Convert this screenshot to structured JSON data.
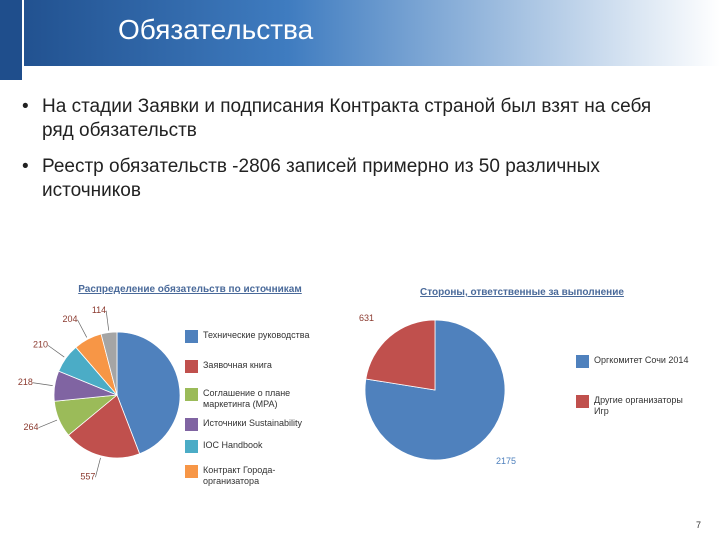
{
  "header": {
    "title": "Обязательства"
  },
  "bullets": [
    "На стадии Заявки и подписания Контракта страной был взят на себя ряд обязательств",
    "Реестр обязательств -2806 записей примерно из 50 различных источников"
  ],
  "page_number": "7",
  "chart_data": [
    {
      "type": "pie",
      "title": "Распределение обязательств по источникам",
      "categories": [
        "Технические руководства",
        "Заявочная книга",
        "Соглашение о плане маркетинга (MPA)",
        "Источники Sustainability",
        "IOC Handbook",
        "Контракт Города-организатора",
        null
      ],
      "values": [
        1239,
        557,
        264,
        218,
        210,
        204,
        114
      ],
      "value_labels": [
        null,
        "557",
        "264",
        "218",
        "210",
        "204",
        "114"
      ],
      "colors": [
        "#4f81bd",
        "#c0504d",
        "#9bbb59",
        "#8064a2",
        "#4bacc6",
        "#f79646",
        "#a5a5a5"
      ]
    },
    {
      "type": "pie",
      "title": "Стороны, ответственные за выполнение",
      "categories": [
        "Оргкомитет Сочи 2014",
        "Другие организаторы Игр"
      ],
      "values": [
        2175,
        631
      ],
      "colors": [
        "#4f81bd",
        "#c0504d"
      ]
    }
  ]
}
